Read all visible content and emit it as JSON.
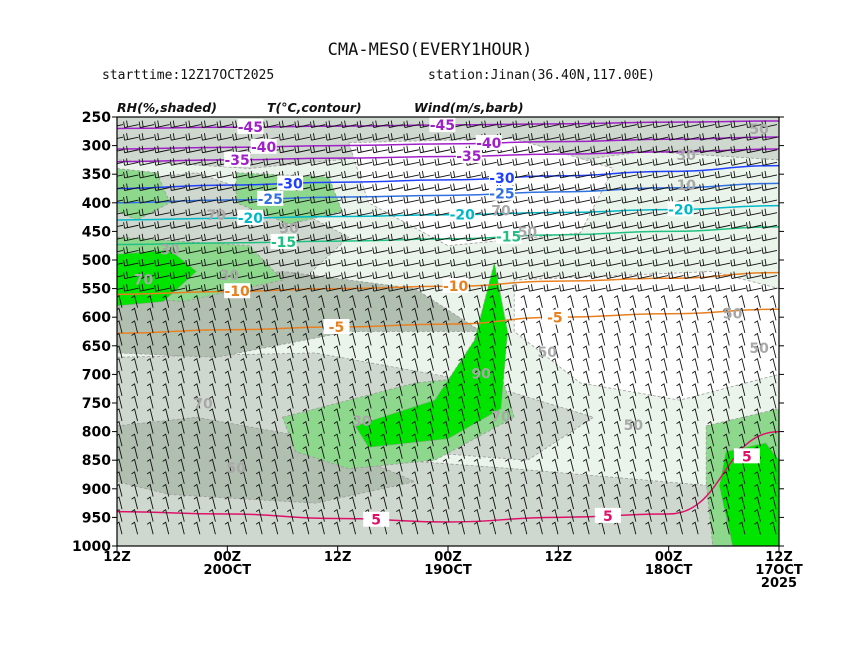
{
  "header": {
    "title": "CMA-MESO(EVERY1HOUR)",
    "starttime": "starttime:12Z17OCT2025",
    "station": "station:Jinan(36.40N,117.00E)"
  },
  "legend": {
    "rh": "RH(%,shaded)",
    "temp": "T(°C,contour)",
    "wind": "Wind(m/s,barb)"
  },
  "chart_data": {
    "type": "heatmap",
    "title": "CMA-MESO(EVERY1HOUR)",
    "variables": [
      "RH(%,shaded)",
      "T(°C,contour)",
      "Wind(m/s,barb)"
    ],
    "y_axis": {
      "ticks": [
        250,
        300,
        350,
        400,
        450,
        500,
        550,
        600,
        650,
        700,
        750,
        800,
        850,
        900,
        950,
        1000
      ],
      "ylim": [
        250,
        1000
      ],
      "inverted": true
    },
    "x_axis": {
      "ticks": [
        {
          "line1": "12Z",
          "line2": "",
          "line3": ""
        },
        {
          "line1": "00Z",
          "line2": "20OCT",
          "line3": ""
        },
        {
          "line1": "12Z",
          "line2": "",
          "line3": ""
        },
        {
          "line1": "00Z",
          "line2": "19OCT",
          "line3": ""
        },
        {
          "line1": "12Z",
          "line2": "",
          "line3": ""
        },
        {
          "line1": "00Z",
          "line2": "18OCT",
          "line3": ""
        },
        {
          "line1": "12Z",
          "line2": "17OCT",
          "line3": "2025"
        }
      ],
      "reversed_time": true
    },
    "temperature_contours": [
      {
        "value": -45,
        "label": "-45",
        "color": "#a020c8",
        "levels": [
          270,
          268,
          266,
          264,
          262,
          259,
          257
        ]
      },
      {
        "value": -40,
        "label": "-40",
        "color": "#a020c8",
        "levels": [
          306,
          303,
          300,
          297,
          293,
          289,
          285
        ]
      },
      {
        "value": -35,
        "label": "-35",
        "color": "#a020c8",
        "levels": [
          328,
          325,
          322,
          319,
          315,
          311,
          306
        ]
      },
      {
        "value": -30,
        "label": "-30",
        "color": "#2040ff",
        "levels": [
          375,
          369,
          364,
          360,
          353,
          345,
          335
        ]
      },
      {
        "value": -25,
        "label": "-25",
        "color": "#3070e0",
        "levels": [
          400,
          395,
          390,
          387,
          381,
          374,
          366
        ]
      },
      {
        "value": -20,
        "label": "-20",
        "color": "#00b8c8",
        "levels": [
          430,
          427,
          424,
          421,
          417,
          412,
          405
        ]
      },
      {
        "value": -15,
        "label": "-15",
        "color": "#20c080",
        "levels": [
          473,
          470,
          467,
          463,
          456,
          450,
          442
        ]
      },
      {
        "value": -10,
        "label": "-10",
        "color": "#e88020",
        "levels": [
          560,
          555,
          550,
          546,
          537,
          532,
          522
        ]
      },
      {
        "value": -5,
        "label": "-5",
        "color": "#e88020",
        "levels": [
          628,
          622,
          617,
          612,
          600,
          594,
          586
        ]
      },
      {
        "value": 5,
        "label": "5",
        "color": "#e0106a",
        "levels": [
          940,
          944,
          952,
          958,
          950,
          944,
          800
        ]
      }
    ],
    "temp_labels": [
      {
        "text": "-45",
        "x": 0.2,
        "color": "#a020c8"
      },
      {
        "text": "-45",
        "x": 0.49,
        "color": "#a020c8"
      },
      {
        "text": "-40",
        "x": 0.22,
        "color": "#a020c8"
      },
      {
        "text": "-40",
        "x": 0.56,
        "color": "#a020c8"
      },
      {
        "text": "-35",
        "x": 0.18,
        "color": "#a020c8"
      },
      {
        "text": "-35",
        "x": 0.53,
        "color": "#a020c8"
      },
      {
        "text": "-30",
        "x": 0.26,
        "color": "#2040ff"
      },
      {
        "text": "-30",
        "x": 0.58,
        "color": "#2040ff"
      },
      {
        "text": "-25",
        "x": 0.23,
        "color": "#3070e0"
      },
      {
        "text": "-25",
        "x": 0.58,
        "color": "#3070e0"
      },
      {
        "text": "-20",
        "x": 0.2,
        "color": "#00b8c8"
      },
      {
        "text": "-20",
        "x": 0.52,
        "color": "#00b8c8"
      },
      {
        "text": "-20",
        "x": 0.85,
        "color": "#00b8c8"
      },
      {
        "text": "-15",
        "x": 0.25,
        "color": "#20c080"
      },
      {
        "text": "-15",
        "x": 0.59,
        "color": "#20c080"
      },
      {
        "text": "-10",
        "x": 0.18,
        "color": "#e88020"
      },
      {
        "text": "-10",
        "x": 0.51,
        "color": "#e88020"
      },
      {
        "text": "-5",
        "x": 0.33,
        "color": "#e88020"
      },
      {
        "text": "-5",
        "x": 0.66,
        "color": "#e88020"
      },
      {
        "text": "5",
        "x": 0.39,
        "color": "#e0106a"
      },
      {
        "text": "5",
        "x": 0.74,
        "color": "#e0106a"
      },
      {
        "text": "5",
        "x": 0.95,
        "color": "#e0106a"
      }
    ],
    "rh_labels": [
      "50",
      "30",
      "10",
      "70",
      "30",
      "70",
      "50",
      "30",
      "70",
      "30",
      "50",
      "50",
      "70",
      "30",
      "70",
      "50",
      "50",
      "90",
      "50"
    ],
    "rh_colors": {
      "lt30": "#ffffff",
      "30-50": "#eaf4ea",
      "50-70": "#cfd8cf",
      "70-80": "#b0bfb0",
      "80-90": "#8ed88e",
      "gt90": "#00e400"
    },
    "wind_barbs": "dense barbs at every hour and ~25 hPa, mostly westerly, stronger aloft"
  }
}
